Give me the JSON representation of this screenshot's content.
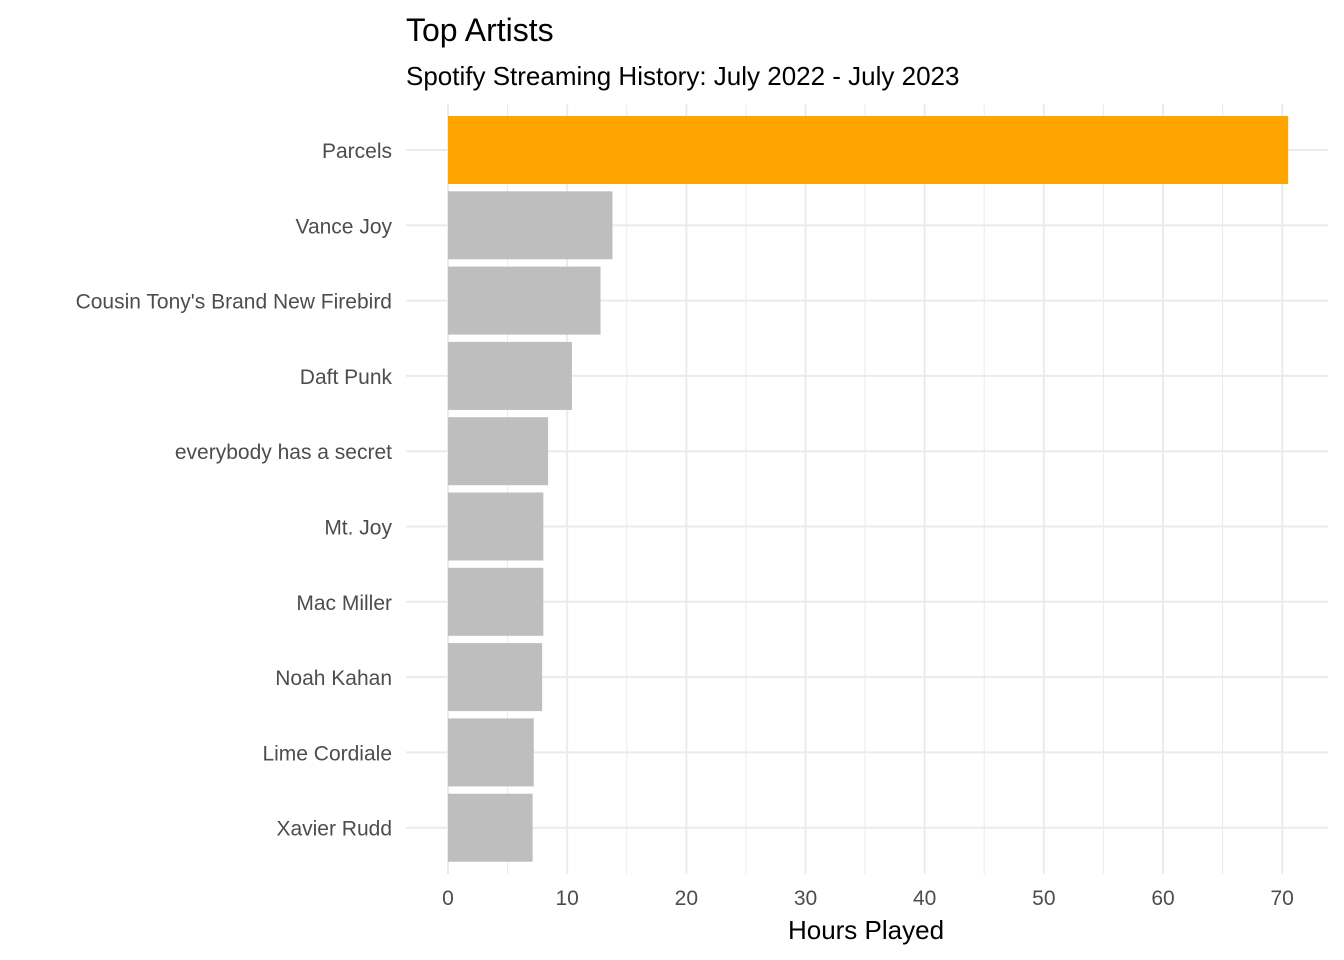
{
  "chart_data": {
    "type": "bar",
    "orientation": "horizontal",
    "title": "Top Artists",
    "subtitle": "Spotify Streaming History: July 2022 - July 2023",
    "xlabel": "Hours Played",
    "ylabel": "",
    "xlim": [
      0,
      72
    ],
    "xticks": [
      0,
      10,
      20,
      30,
      40,
      50,
      60,
      70
    ],
    "categories": [
      "Parcels",
      "Vance Joy",
      "Cousin Tony's Brand New Firebird",
      "Daft Punk",
      "everybody has a secret",
      "Mt. Joy",
      "Mac Miller",
      "Noah Kahan",
      "Lime Cordiale",
      "Xavier Rudd"
    ],
    "values": [
      70.5,
      13.8,
      12.8,
      10.4,
      8.4,
      8.0,
      8.0,
      7.9,
      7.2,
      7.1
    ],
    "highlight_color": "#FFA500",
    "bar_color": "#BEBEBE",
    "grid": true,
    "legend": "none"
  }
}
